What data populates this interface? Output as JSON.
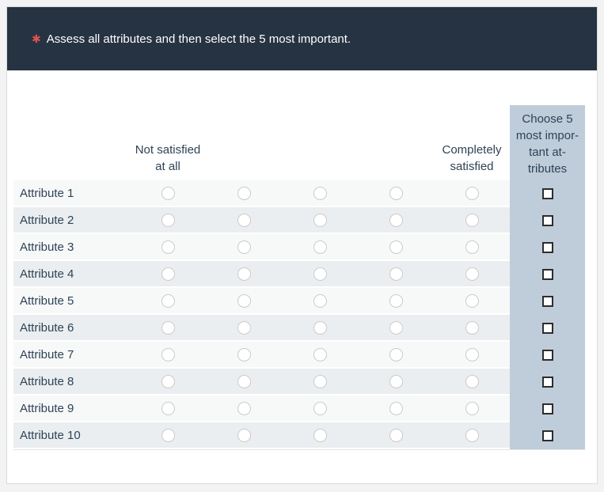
{
  "question": {
    "required_marker": "✱",
    "text": "Assess all attributes and then select the 5 most important.",
    "header_bg": "#263342",
    "marker_color": "#e0534f"
  },
  "matrix": {
    "scale_points": 5,
    "scale_header_left": "Not satisfied\nat all",
    "scale_header_right": "Completely\nsatisfied",
    "choose_column_header": "Choose 5\nmost impor-\ntant at-\ntributes",
    "choose_column_bg": "#bfccda",
    "text_color": "#2e4356",
    "rows": [
      {
        "label": "Attribute 1"
      },
      {
        "label": "Attribute 2"
      },
      {
        "label": "Attribute 3"
      },
      {
        "label": "Attribute 4"
      },
      {
        "label": "Attribute 5"
      },
      {
        "label": "Attribute 6"
      },
      {
        "label": "Attribute 7"
      },
      {
        "label": "Attribute 8"
      },
      {
        "label": "Attribute 9"
      },
      {
        "label": "Attribute 10"
      }
    ]
  }
}
